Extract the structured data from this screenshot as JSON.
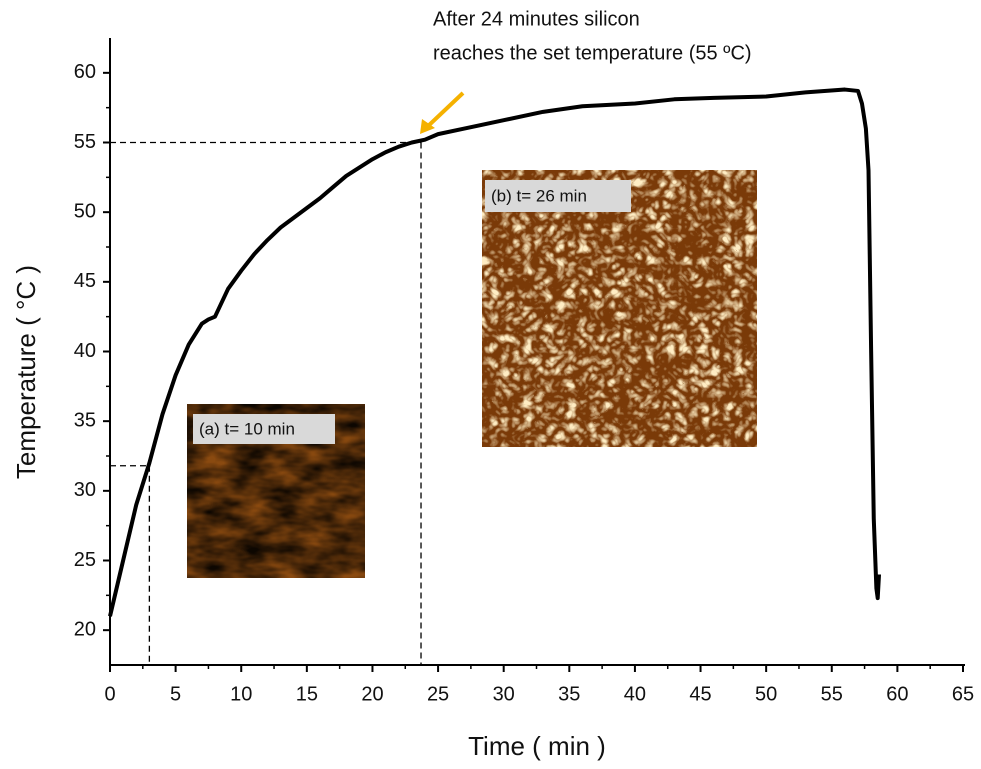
{
  "chart_data": {
    "type": "line",
    "x_label": "Time ( min )",
    "y_label": "Temperature ( °C )",
    "xlim": [
      0,
      65
    ],
    "xticks": [
      0,
      5,
      10,
      15,
      20,
      25,
      30,
      35,
      40,
      45,
      50,
      55,
      60,
      65
    ],
    "ylim": [
      17.5,
      62.5
    ],
    "yticks": [
      20,
      25,
      30,
      35,
      40,
      45,
      50,
      55,
      60
    ],
    "series": [
      {
        "color": "#000000",
        "x": [
          0,
          1,
          2,
          3,
          4,
          5,
          6,
          7,
          7.5,
          8,
          9,
          10,
          11,
          12,
          13,
          14,
          15,
          16,
          17,
          18,
          19,
          20,
          21,
          22,
          23,
          24,
          25,
          27,
          30,
          33,
          36,
          40,
          43,
          46,
          50,
          53,
          56,
          57,
          57.3,
          57.6,
          57.8,
          58,
          58.2,
          58.4,
          58.5,
          58.6
        ],
        "values": [
          21,
          25,
          29,
          32,
          35.5,
          38.3,
          40.5,
          42,
          42.3,
          42.5,
          44.5,
          45.8,
          47,
          48,
          48.9,
          49.6,
          50.3,
          51,
          51.8,
          52.6,
          53.2,
          53.8,
          54.3,
          54.7,
          55,
          55.2,
          55.6,
          56,
          56.6,
          57.2,
          57.6,
          57.8,
          58.1,
          58.2,
          58.3,
          58.6,
          58.8,
          58.7,
          57.8,
          56,
          53,
          40,
          28,
          23,
          22.3,
          24
        ]
      }
    ],
    "reference_lines": [
      {
        "x": 23.7,
        "y": 55
      },
      {
        "x": 3,
        "y": 31.8
      }
    ],
    "annotation": [
      "After 24 minutes silicon",
      "reaches the set temperature (55 ºC)"
    ],
    "insets": [
      {
        "label": "(a) t= 10 min"
      },
      {
        "label": "(b) t= 26 min"
      }
    ]
  }
}
